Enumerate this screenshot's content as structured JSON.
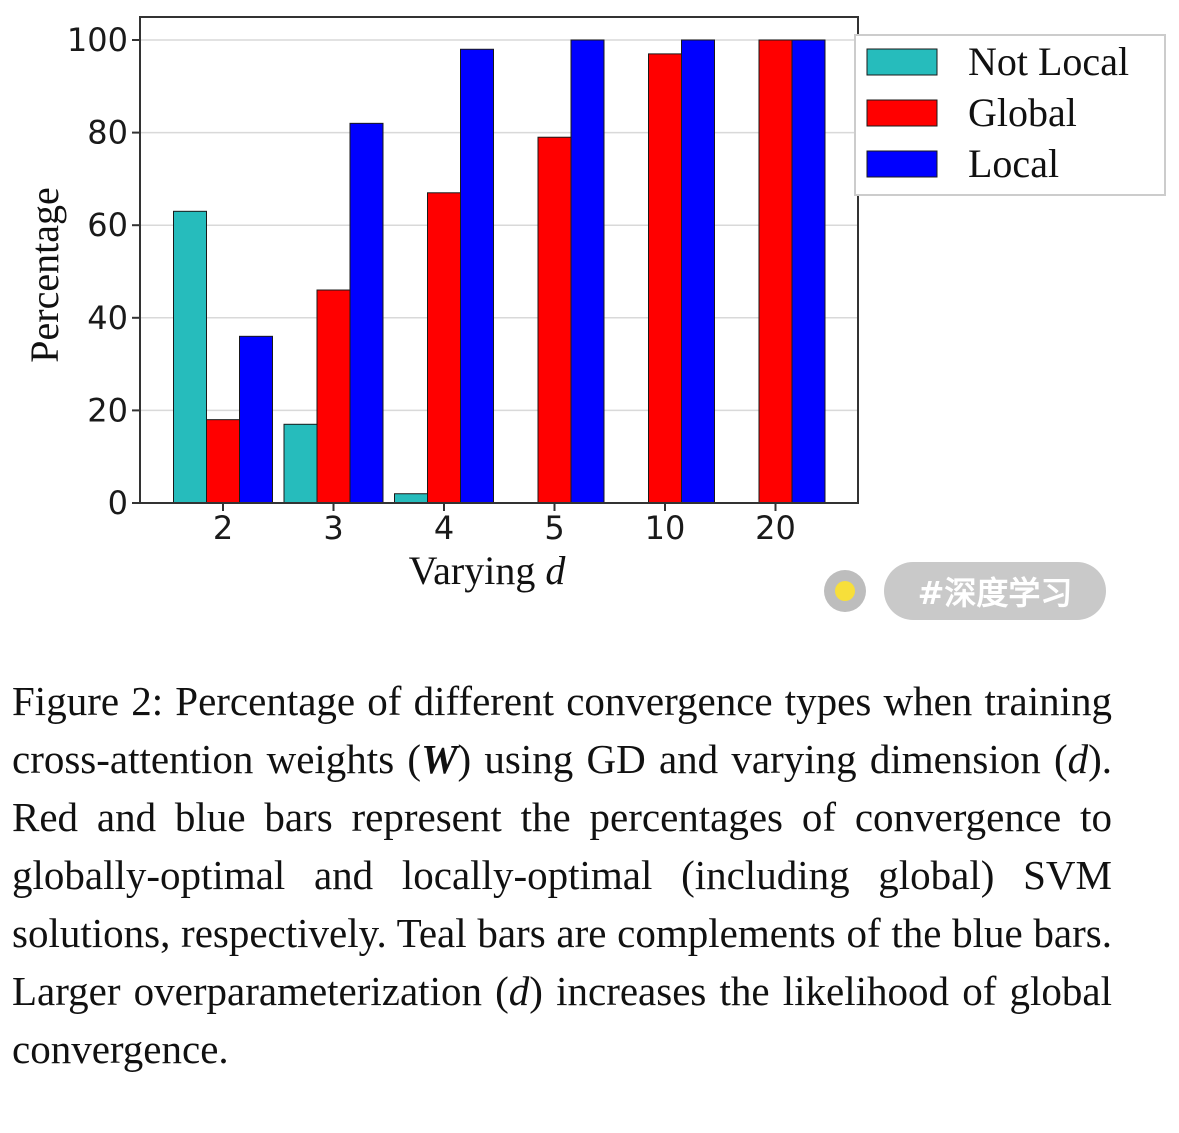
{
  "chart_data": {
    "type": "bar",
    "categories": [
      "2",
      "3",
      "4",
      "5",
      "10",
      "20"
    ],
    "series": [
      {
        "name": "Not Local",
        "color": "#26bcbc",
        "values": [
          63,
          17,
          2,
          0,
          0,
          0
        ]
      },
      {
        "name": "Global",
        "color": "#ff0000",
        "values": [
          18,
          46,
          67,
          79,
          97,
          100
        ]
      },
      {
        "name": "Local",
        "color": "#0000ff",
        "values": [
          36,
          82,
          98,
          100,
          100,
          100
        ]
      }
    ],
    "title": "",
    "xlabel_prefix": "Varying ",
    "xlabel_var": "d",
    "ylabel": "Percentage",
    "ylim": [
      0,
      100
    ],
    "yticks": [
      0,
      20,
      40,
      60,
      80,
      100
    ],
    "grid": true,
    "legend_position": "top-right"
  },
  "tag": {
    "label": "#深度学习"
  },
  "caption": {
    "prefix": "Figure 2:  Percentage of different convergence types when training cross-attention weights (",
    "w_symbol": "W",
    "part2": ") using GD and varying dimension (",
    "d1": "d",
    "part3": "). Red and blue bars represent the percentages of convergence to globally-optimal and locally-optimal (including global) SVM solutions, respectively. Teal bars are complements of the blue bars. Larger overparameterization (",
    "d2": "d",
    "part4": ") increases the likelihood of global convergence."
  }
}
